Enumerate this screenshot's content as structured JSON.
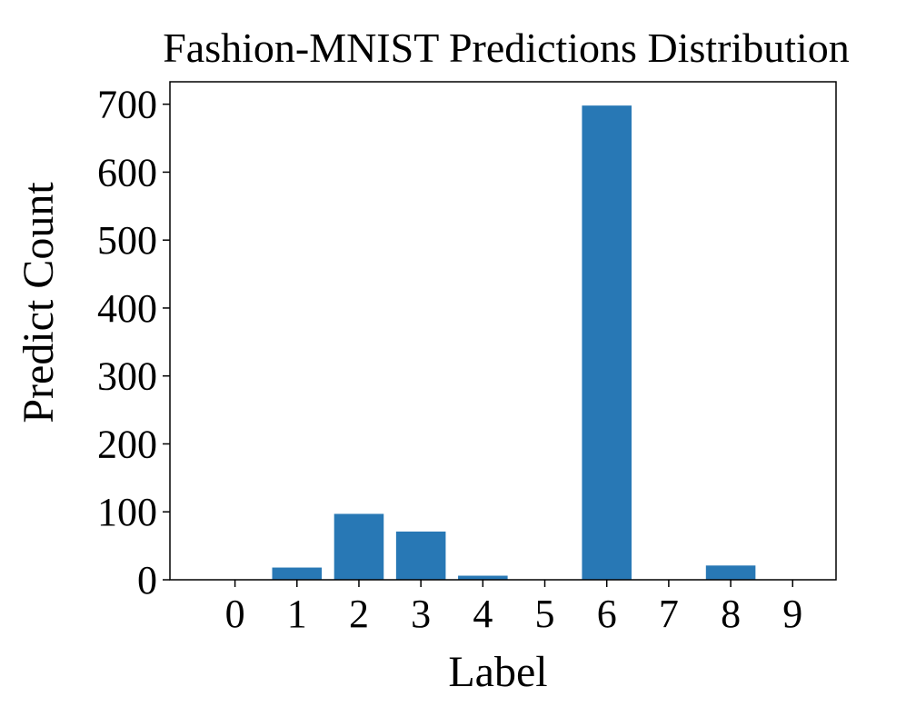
{
  "chart_data": {
    "type": "bar",
    "title": "Fashion-MNIST Predictions Distribution",
    "xlabel": "Label",
    "ylabel": "Predict Count",
    "categories": [
      "0",
      "1",
      "2",
      "3",
      "4",
      "5",
      "6",
      "7",
      "8",
      "9"
    ],
    "values": [
      0,
      18,
      97,
      71,
      6,
      0,
      698,
      0,
      21,
      0
    ],
    "yticks": [
      0,
      100,
      200,
      300,
      400,
      500,
      600,
      700
    ],
    "ylim": [
      0,
      733
    ],
    "grid": false,
    "bar_color": "#2878b5"
  }
}
